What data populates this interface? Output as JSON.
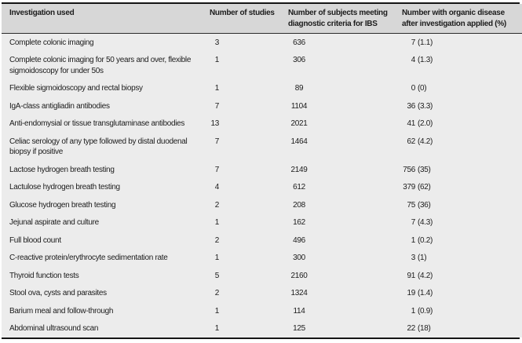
{
  "table": {
    "columns": {
      "c1": "Investigation used",
      "c2": "Number of studies",
      "c3_line1": "Number of subjects meeting",
      "c3_line2": "diagnostic criteria for IBS",
      "c4_line1": "Number with organic disease",
      "c4_line2": "after investigation applied (%)"
    },
    "rows": [
      {
        "name_lines": [
          "Complete colonic imaging"
        ],
        "studies": "3",
        "subjects": "636",
        "organic_n": "7",
        "organic_pct": "(1.1)"
      },
      {
        "name_lines": [
          "Complete colonic imaging for 50 years and over, flexible",
          "sigmoidoscopy for under 50s"
        ],
        "studies": "1",
        "subjects": "306",
        "organic_n": "4",
        "organic_pct": "(1.3)"
      },
      {
        "name_lines": [
          "Flexible sigmoidoscopy and rectal biopsy"
        ],
        "studies": "1",
        "subjects": "89",
        "organic_n": "0",
        "organic_pct": "(0)"
      },
      {
        "name_lines": [
          "IgA-class antigliadin antibodies"
        ],
        "studies": "7",
        "subjects": "1104",
        "organic_n": "36",
        "organic_pct": "(3.3)"
      },
      {
        "name_lines": [
          "Anti-endomysial or tissue transglutaminase antibodies"
        ],
        "studies": "13",
        "subjects": "2021",
        "organic_n": "41",
        "organic_pct": "(2.0)"
      },
      {
        "name_lines": [
          "Celiac serology of any type followed by distal duodenal",
          "biopsy if positive"
        ],
        "studies": "7",
        "subjects": "1464",
        "organic_n": "62",
        "organic_pct": "(4.2)"
      },
      {
        "name_lines": [
          "Lactose hydrogen breath testing"
        ],
        "studies": "7",
        "subjects": "2149",
        "organic_n": "756",
        "organic_pct": "(35)"
      },
      {
        "name_lines": [
          "Lactulose hydrogen breath testing"
        ],
        "studies": "4",
        "subjects": "612",
        "organic_n": "379",
        "organic_pct": "(62)"
      },
      {
        "name_lines": [
          "Glucose hydrogen breath testing"
        ],
        "studies": "2",
        "subjects": "208",
        "organic_n": "75",
        "organic_pct": "(36)"
      },
      {
        "name_lines": [
          "Jejunal aspirate and culture"
        ],
        "studies": "1",
        "subjects": "162",
        "organic_n": "7",
        "organic_pct": "(4.3)"
      },
      {
        "name_lines": [
          "Full blood count"
        ],
        "studies": "2",
        "subjects": "496",
        "organic_n": "1",
        "organic_pct": "(0.2)"
      },
      {
        "name_lines": [
          "C-reactive protein/erythrocyte sedimentation rate"
        ],
        "studies": "1",
        "subjects": "300",
        "organic_n": "3",
        "organic_pct": "(1)"
      },
      {
        "name_lines": [
          "Thyroid function tests"
        ],
        "studies": "5",
        "subjects": "2160",
        "organic_n": "91",
        "organic_pct": "(4.2)"
      },
      {
        "name_lines": [
          "Stool ova, cysts and parasites"
        ],
        "studies": "2",
        "subjects": "1324",
        "organic_n": "19",
        "organic_pct": "(1.4)"
      },
      {
        "name_lines": [
          "Barium meal and follow-through"
        ],
        "studies": "1",
        "subjects": "114",
        "organic_n": "1",
        "organic_pct": "(0.9)"
      },
      {
        "name_lines": [
          "Abdominal ultrasound scan"
        ],
        "studies": "1",
        "subjects": "125",
        "organic_n": "22",
        "organic_pct": "(18)"
      }
    ]
  },
  "colors": {
    "header_bg": "#d7d7d7",
    "body_bg": "#ececec",
    "rule": "#151515",
    "text": "#1c1c1c"
  }
}
